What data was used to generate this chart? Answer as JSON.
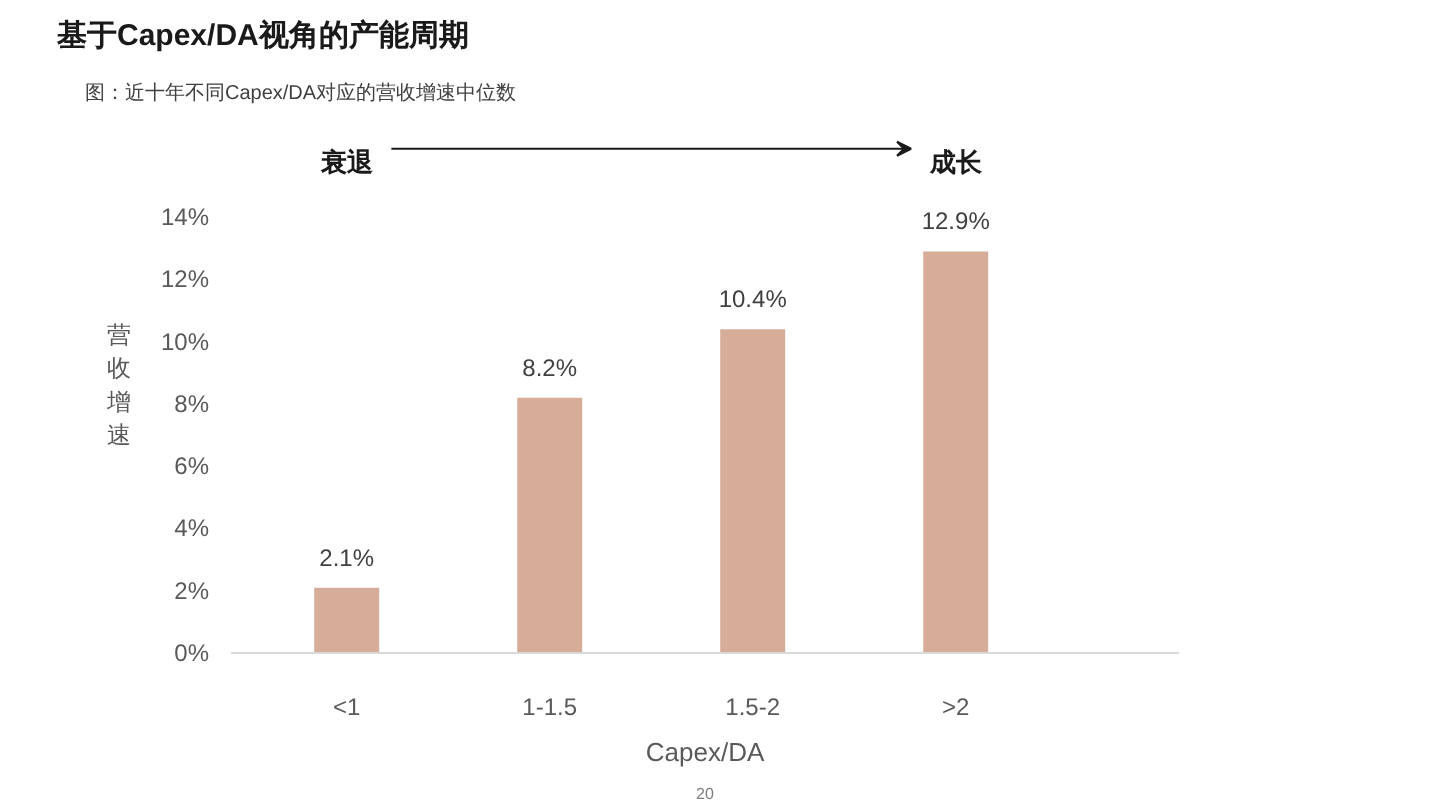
{
  "chart_data": {
    "type": "bar",
    "title": "基于Capex/DA视角的产能周期",
    "subtitle": "图：近十年不同Capex/DA对应的营收增速中位数",
    "xlabel": "Capex/DA",
    "ylabel": "营收增速",
    "categories": [
      "<1",
      "1-1.5",
      "1.5-2",
      ">2"
    ],
    "values": [
      2.1,
      8.2,
      10.4,
      12.9
    ],
    "color": "#d5ad99",
    "value_labels": [
      "2.1%",
      "8.2%",
      "10.4%",
      "12.9%"
    ],
    "ylim": [
      0,
      14
    ],
    "yticks": [
      {
        "value": 0,
        "label": "0%"
      },
      {
        "value": 2,
        "label": "2%"
      },
      {
        "value": 4,
        "label": "4%"
      },
      {
        "value": 6,
        "label": "6%"
      },
      {
        "value": 8,
        "label": "8%"
      },
      {
        "value": 10,
        "label": "10%"
      },
      {
        "value": 12,
        "label": "12%"
      },
      {
        "value": 14,
        "label": "14%"
      }
    ],
    "grid": false,
    "annotations": [
      "衰退",
      "成长",
      "20"
    ]
  }
}
